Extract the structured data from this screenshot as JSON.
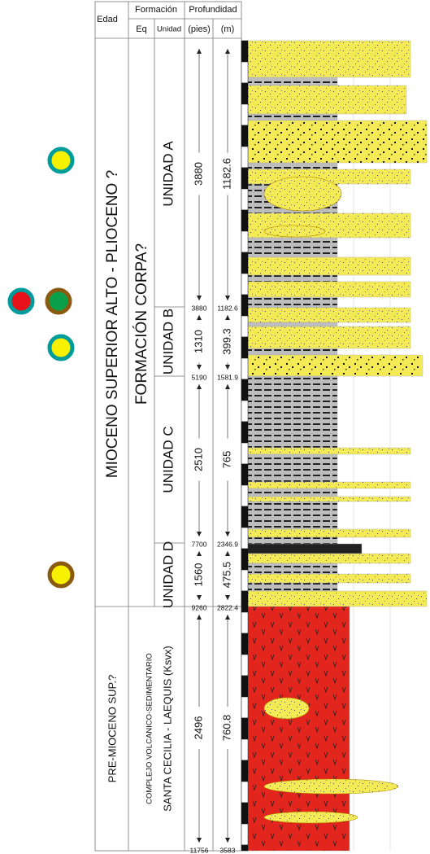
{
  "header": {
    "edad": "Edad",
    "formacion": "Formación",
    "profundidad": "Profundidad",
    "eq": "Eq",
    "unidad": "Unidad",
    "pies": "(pies)",
    "m": "(m)"
  },
  "ages": [
    {
      "label": "MIOCENO SUPERIOR ALTO - PLIOCENO ?"
    },
    {
      "label": "PRE-MIOCENO SUP.?"
    }
  ],
  "formations": [
    {
      "label": "FORMACIÓN CORPA?"
    },
    {
      "lines": [
        "COMPLEJO VOLCANICO-SEDIMENTARIO",
        "SANTA CECILIA - LAEQUIS (Ksvx)"
      ]
    }
  ],
  "units": [
    {
      "label": "UNIDAD A",
      "thickness_ft": 3880,
      "thickness_m": 1182.6
    },
    {
      "label": "UNIDAD B",
      "thickness_ft": 1310,
      "thickness_m": 399.3
    },
    {
      "label": "UNIDAD C",
      "thickness_ft": 2510,
      "thickness_m": 765
    },
    {
      "label": "UNIDAD D",
      "thickness_ft": 1560,
      "thickness_m": 475.5
    },
    {
      "thickness_ft": 2496,
      "thickness_m": 760.8
    }
  ],
  "boundaries": [
    {
      "ft": 3880,
      "m": 1182.6
    },
    {
      "ft": 5190,
      "m": 1581.9
    },
    {
      "ft": 7700,
      "m": 2346.9
    },
    {
      "ft": 9260,
      "m": 2822.4
    },
    {
      "ft": 11756,
      "m": 3583
    }
  ]
}
